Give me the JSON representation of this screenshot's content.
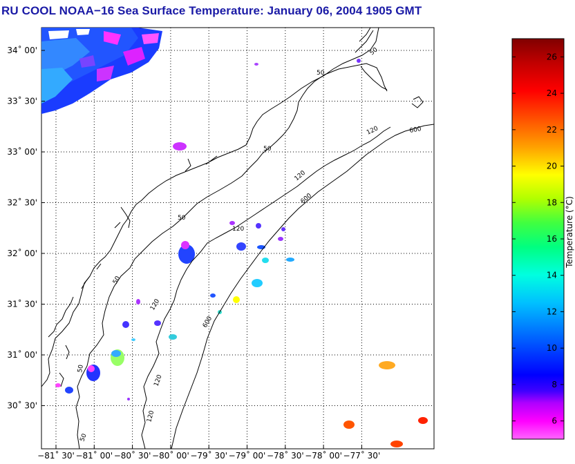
{
  "title": "RU COOL  NOAA−16  Sea Surface Temperature:  January 06, 2004 1905 GMT",
  "map": {
    "lon_ticks": [
      "−81˚ 30'",
      "−81˚ 00'",
      "−80˚ 30'",
      "−80˚ 00'",
      "−79˚ 30'",
      "−79˚ 00'",
      "−78˚ 30'",
      "−78˚ 00'",
      "−77˚ 30'"
    ],
    "lat_ticks": [
      "34˚ 00'",
      "33˚ 30'",
      "33˚ 00'",
      "32˚ 30'",
      "32˚ 00'",
      "31˚ 30'",
      "31˚ 00'",
      "30˚ 30'"
    ],
    "isobath_labels": [
      "50",
      "50",
      "50",
      "50",
      "50",
      "50",
      "50",
      "120",
      "120",
      "120",
      "120",
      "120",
      "120",
      "600",
      "600",
      "600"
    ],
    "colors": {
      "land_outline": "#000000",
      "grid": "#000000",
      "cold_water": "#1a33ff",
      "warm_water": "#ff5a00"
    }
  },
  "colorbar": {
    "label": "Temperature (°C)",
    "ticks": [
      "26",
      "24",
      "22",
      "20",
      "18",
      "16",
      "14",
      "12",
      "10",
      "8",
      "6"
    ],
    "min": 5.0,
    "max": 27.0
  }
}
